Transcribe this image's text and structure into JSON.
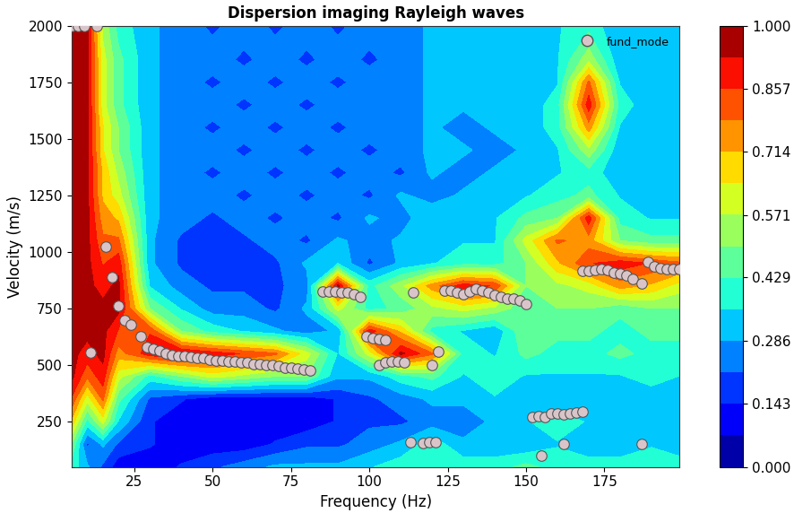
{
  "chart_data": {
    "type": "heatmap",
    "title": "Dispersion imaging Rayleigh waves",
    "x_label": "Frequency (Hz)",
    "y_label": "Velocity (m/s)",
    "xlim": [
      5,
      199
    ],
    "ylim": [
      50,
      2000
    ],
    "xticks": [
      25,
      50,
      75,
      100,
      125,
      150,
      175
    ],
    "yticks": [
      250,
      500,
      750,
      1000,
      1250,
      1500,
      1750,
      2000
    ],
    "grid": false,
    "x_grid": [
      5,
      10,
      15,
      20,
      30,
      40,
      50,
      60,
      70,
      80,
      90,
      100,
      110,
      120,
      130,
      140,
      150,
      160,
      170,
      180,
      190,
      200
    ],
    "y_grid": [
      50,
      150,
      250,
      350,
      450,
      550,
      650,
      750,
      850,
      950,
      1050,
      1150,
      1250,
      1350,
      1450,
      1550,
      1650,
      1750,
      1850,
      2000
    ],
    "cells": [
      [
        0.4,
        0.3,
        0.2,
        0.1,
        0.1,
        0.15,
        0.2,
        0.25,
        0.3,
        0.3,
        0.3,
        0.35,
        0.4,
        0.4,
        0.4,
        0.4,
        0.45,
        0.4,
        0.4,
        0.4,
        0.4,
        0.4
      ],
      [
        0.5,
        0.2,
        0.3,
        0.2,
        0.15,
        0.1,
        0.1,
        0.1,
        0.15,
        0.2,
        0.2,
        0.25,
        0.3,
        0.4,
        0.3,
        0.3,
        0.3,
        0.35,
        0.3,
        0.3,
        0.35,
        0.3
      ],
      [
        0.7,
        0.4,
        0.6,
        0.35,
        0.15,
        0.1,
        0.1,
        0.1,
        0.1,
        0.1,
        0.15,
        0.2,
        0.2,
        0.25,
        0.25,
        0.3,
        0.35,
        0.4,
        0.35,
        0.3,
        0.3,
        0.3
      ],
      [
        0.85,
        0.6,
        0.8,
        0.45,
        0.2,
        0.15,
        0.1,
        0.1,
        0.1,
        0.1,
        0.15,
        0.2,
        0.25,
        0.3,
        0.3,
        0.35,
        0.3,
        0.3,
        0.3,
        0.3,
        0.3,
        0.3
      ],
      [
        0.95,
        0.8,
        0.9,
        0.6,
        0.4,
        0.5,
        0.6,
        0.55,
        0.5,
        0.5,
        0.3,
        0.3,
        0.4,
        0.45,
        0.35,
        0.4,
        0.35,
        0.35,
        0.35,
        0.35,
        0.4,
        0.35
      ],
      [
        0.95,
        0.9,
        0.95,
        0.75,
        0.9,
        0.95,
        0.9,
        0.85,
        0.8,
        0.6,
        0.35,
        0.6,
        0.95,
        0.8,
        0.4,
        0.35,
        0.45,
        0.4,
        0.4,
        0.45,
        0.4,
        0.4
      ],
      [
        0.95,
        0.95,
        0.95,
        0.85,
        0.85,
        0.5,
        0.4,
        0.35,
        0.3,
        0.25,
        0.3,
        0.9,
        0.7,
        0.4,
        0.35,
        0.3,
        0.5,
        0.45,
        0.45,
        0.4,
        0.45,
        0.45
      ],
      [
        0.95,
        0.95,
        0.95,
        0.95,
        0.5,
        0.35,
        0.25,
        0.25,
        0.2,
        0.3,
        0.6,
        0.4,
        0.45,
        0.55,
        0.6,
        0.55,
        0.45,
        0.5,
        0.5,
        0.45,
        0.5,
        0.5
      ],
      [
        0.95,
        0.95,
        0.9,
        0.95,
        0.35,
        0.25,
        0.2,
        0.2,
        0.2,
        0.25,
        0.95,
        0.4,
        0.55,
        0.75,
        0.9,
        0.85,
        0.5,
        0.55,
        0.6,
        0.75,
        0.7,
        0.6
      ],
      [
        0.95,
        0.95,
        0.85,
        0.9,
        0.3,
        0.2,
        0.15,
        0.15,
        0.2,
        0.3,
        0.35,
        0.2,
        0.3,
        0.35,
        0.4,
        0.4,
        0.5,
        0.7,
        0.85,
        0.9,
        0.85,
        0.8
      ],
      [
        0.95,
        0.95,
        0.8,
        0.8,
        0.3,
        0.2,
        0.15,
        0.2,
        0.25,
        0.2,
        0.3,
        0.25,
        0.3,
        0.3,
        0.35,
        0.35,
        0.6,
        0.8,
        0.75,
        0.5,
        0.45,
        0.45
      ],
      [
        0.95,
        0.95,
        0.75,
        0.7,
        0.3,
        0.25,
        0.2,
        0.25,
        0.2,
        0.25,
        0.2,
        0.3,
        0.25,
        0.35,
        0.3,
        0.35,
        0.45,
        0.5,
        0.9,
        0.4,
        0.35,
        0.35
      ],
      [
        0.95,
        0.95,
        0.7,
        0.6,
        0.3,
        0.25,
        0.25,
        0.2,
        0.25,
        0.2,
        0.25,
        0.2,
        0.3,
        0.25,
        0.3,
        0.3,
        0.35,
        0.4,
        0.45,
        0.35,
        0.35,
        0.3
      ],
      [
        0.95,
        0.95,
        0.7,
        0.55,
        0.3,
        0.25,
        0.2,
        0.25,
        0.2,
        0.25,
        0.2,
        0.25,
        0.2,
        0.3,
        0.25,
        0.3,
        0.3,
        0.35,
        0.4,
        0.3,
        0.3,
        0.3
      ],
      [
        0.95,
        0.95,
        0.65,
        0.5,
        0.3,
        0.25,
        0.25,
        0.2,
        0.25,
        0.2,
        0.25,
        0.2,
        0.25,
        0.3,
        0.3,
        0.25,
        0.3,
        0.35,
        0.55,
        0.3,
        0.3,
        0.3
      ],
      [
        0.95,
        0.95,
        0.65,
        0.5,
        0.3,
        0.25,
        0.2,
        0.25,
        0.2,
        0.25,
        0.2,
        0.25,
        0.25,
        0.3,
        0.25,
        0.3,
        0.3,
        0.4,
        0.75,
        0.35,
        0.3,
        0.3
      ],
      [
        0.95,
        0.95,
        0.6,
        0.45,
        0.3,
        0.25,
        0.25,
        0.2,
        0.25,
        0.2,
        0.25,
        0.25,
        0.25,
        0.3,
        0.3,
        0.3,
        0.3,
        0.4,
        0.9,
        0.4,
        0.3,
        0.3
      ],
      [
        0.95,
        0.95,
        0.6,
        0.45,
        0.3,
        0.25,
        0.2,
        0.25,
        0.2,
        0.25,
        0.2,
        0.25,
        0.25,
        0.3,
        0.3,
        0.3,
        0.3,
        0.35,
        0.8,
        0.35,
        0.3,
        0.3
      ],
      [
        0.95,
        0.95,
        0.6,
        0.45,
        0.3,
        0.25,
        0.25,
        0.2,
        0.25,
        0.2,
        0.25,
        0.2,
        0.25,
        0.3,
        0.3,
        0.3,
        0.3,
        0.35,
        0.55,
        0.3,
        0.3,
        0.3
      ],
      [
        0.95,
        0.95,
        0.55,
        0.4,
        0.3,
        0.25,
        0.2,
        0.25,
        0.2,
        0.25,
        0.2,
        0.25,
        0.25,
        0.3,
        0.3,
        0.3,
        0.3,
        0.35,
        0.4,
        0.3,
        0.3,
        0.3
      ]
    ],
    "colorbar_range": [
      0,
      1
    ],
    "colorbar_ticks": [
      {
        "value": 0,
        "label": "0.000"
      },
      0.143,
      0.286,
      0.429,
      0.571,
      0.714,
      0.857,
      {
        "value": 1,
        "label": "1.000"
      }
    ],
    "legend": "upper right",
    "series": [
      {
        "name": "fund_mode",
        "type": "scatter",
        "color": "#d9c5c9",
        "marker": "o",
        "x": [
          5,
          7,
          9,
          13,
          11,
          16,
          18,
          20,
          22,
          24,
          27,
          29,
          31,
          33,
          35,
          37,
          39,
          41,
          43,
          45,
          47,
          49,
          51,
          53,
          55,
          57,
          59,
          61,
          63,
          65,
          67,
          69,
          71,
          73,
          75,
          77,
          79,
          81,
          85,
          87,
          89,
          91,
          93,
          95,
          97,
          99,
          101,
          103,
          105,
          103,
          105,
          107,
          109,
          111,
          114,
          120,
          122,
          124,
          126,
          128,
          130,
          132,
          134,
          136,
          138,
          140,
          142,
          144,
          146,
          148,
          150,
          152,
          154,
          156,
          158,
          160,
          162,
          164,
          166,
          168,
          113,
          117,
          119,
          121,
          155,
          162,
          187,
          168,
          170,
          172,
          174,
          176,
          178,
          180,
          182,
          184,
          187,
          189,
          191,
          193,
          195,
          197,
          199
        ],
        "y": [
          2000,
          2000,
          2000,
          2000,
          555,
          1025,
          890,
          760,
          700,
          680,
          625,
          580,
          570,
          565,
          550,
          545,
          540,
          540,
          535,
          530,
          530,
          525,
          520,
          520,
          515,
          515,
          510,
          510,
          505,
          505,
          500,
          500,
          495,
          490,
          490,
          485,
          480,
          475,
          825,
          825,
          825,
          820,
          820,
          815,
          800,
          625,
          620,
          615,
          610,
          500,
          510,
          515,
          515,
          510,
          820,
          500,
          560,
          830,
          830,
          820,
          815,
          825,
          835,
          830,
          820,
          810,
          800,
          795,
          795,
          785,
          770,
          270,
          275,
          270,
          285,
          285,
          280,
          285,
          290,
          295,
          160,
          155,
          160,
          160,
          100,
          150,
          150,
          915,
          915,
          920,
          925,
          920,
          910,
          905,
          895,
          880,
          860,
          955,
          935,
          930,
          925,
          925,
          925
        ]
      }
    ]
  }
}
